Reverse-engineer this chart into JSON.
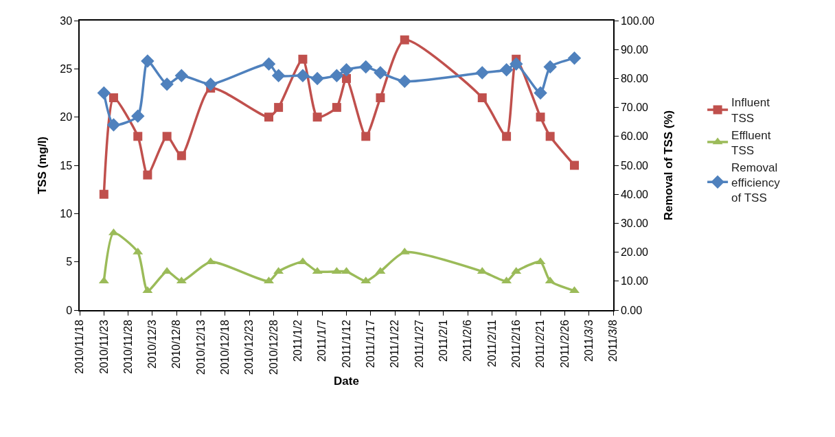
{
  "chart_data": {
    "type": "line",
    "xlabel": "Date",
    "ylabel": "TSS (mg/l)",
    "y2label": "Removal of TSS (%)",
    "x": [
      "2010-11-23",
      "2010-11-25",
      "2010-11-30",
      "2010-12-02",
      "2010-12-06",
      "2010-12-09",
      "2010-12-15",
      "2010-12-27",
      "2010-12-29",
      "2011-01-03",
      "2011-01-06",
      "2011-01-10",
      "2011-01-12",
      "2011-01-16",
      "2011-01-19",
      "2011-01-24",
      "2011-02-09",
      "2011-02-14",
      "2011-02-16",
      "2011-02-21",
      "2011-02-23",
      "2011-02-28"
    ],
    "series": [
      {
        "name": "Influent TSS",
        "color": "#c0504d",
        "marker": "square",
        "values": [
          12,
          22,
          18,
          14,
          18,
          16,
          23,
          20,
          21,
          26,
          20,
          21,
          24,
          18,
          22,
          28,
          22,
          18,
          26,
          20,
          18,
          15
        ]
      },
      {
        "name": "Effluent TSS",
        "color": "#9bbb59",
        "marker": "triangle",
        "values": [
          3,
          8,
          6,
          2,
          4,
          3,
          5,
          3,
          4,
          5,
          4,
          4,
          4,
          3,
          4,
          6,
          4,
          3,
          4,
          5,
          3,
          2
        ]
      },
      {
        "name": "Removal efficiency of TSS",
        "color": "#4f81bd",
        "marker": "diamond",
        "axis": "y2",
        "values": [
          75,
          64,
          67,
          86,
          78,
          81,
          78,
          85,
          81,
          81,
          80,
          81,
          83,
          84,
          82,
          79,
          82,
          83,
          85,
          75,
          84,
          87
        ]
      }
    ],
    "xlim": [
      "2010-11-18",
      "2011-03-08"
    ],
    "xticks": [
      {
        "value": "2010-11-18",
        "label": "2010/11/18"
      },
      {
        "value": "2010-11-23",
        "label": "2010/11/23"
      },
      {
        "value": "2010-11-28",
        "label": "2010/11/28"
      },
      {
        "value": "2010-12-03",
        "label": "2010/12/3"
      },
      {
        "value": "2010-12-08",
        "label": "2010/12/8"
      },
      {
        "value": "2010-12-13",
        "label": "2010/12/13"
      },
      {
        "value": "2010-12-18",
        "label": "2010/12/18"
      },
      {
        "value": "2010-12-23",
        "label": "2010/12/23"
      },
      {
        "value": "2010-12-28",
        "label": "2010/12/28"
      },
      {
        "value": "2011-01-02",
        "label": "2011/1/2"
      },
      {
        "value": "2011-01-07",
        "label": "2011/1/7"
      },
      {
        "value": "2011-01-12",
        "label": "2011/1/12"
      },
      {
        "value": "2011-01-17",
        "label": "2011/1/17"
      },
      {
        "value": "2011-01-22",
        "label": "2011/1/22"
      },
      {
        "value": "2011-01-27",
        "label": "2011/1/27"
      },
      {
        "value": "2011-02-01",
        "label": "2011/2/1"
      },
      {
        "value": "2011-02-06",
        "label": "2011/2/6"
      },
      {
        "value": "2011-02-11",
        "label": "2011/2/11"
      },
      {
        "value": "2011-02-16",
        "label": "2011/2/16"
      },
      {
        "value": "2011-02-21",
        "label": "2011/2/21"
      },
      {
        "value": "2011-02-26",
        "label": "2011/2/26"
      },
      {
        "value": "2011-03-03",
        "label": "2011/3/3"
      },
      {
        "value": "2011-03-08",
        "label": "2011/3/8"
      }
    ],
    "ylim": [
      0,
      30
    ],
    "yticks": [
      0,
      5,
      10,
      15,
      20,
      25,
      30
    ],
    "y2lim": [
      0,
      100
    ],
    "y2ticks": [
      {
        "value": 0,
        "label": "0.00"
      },
      {
        "value": 10,
        "label": "10.00"
      },
      {
        "value": 20,
        "label": "20.00"
      },
      {
        "value": 30,
        "label": "30.00"
      },
      {
        "value": 40,
        "label": "40.00"
      },
      {
        "value": 50,
        "label": "50.00"
      },
      {
        "value": 60,
        "label": "60.00"
      },
      {
        "value": 70,
        "label": "70.00"
      },
      {
        "value": 80,
        "label": "80.00"
      },
      {
        "value": 90,
        "label": "90.00"
      },
      {
        "value": 100,
        "label": "100.00"
      }
    ],
    "legend": "right",
    "line_style": "solid"
  }
}
